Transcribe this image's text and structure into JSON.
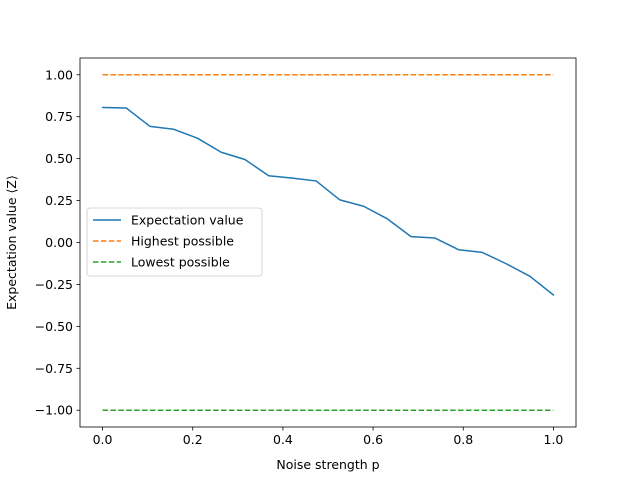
{
  "chart_data": {
    "type": "line",
    "xlabel": "Noise strength p",
    "ylabel": "Expectation value ⟨Z⟩",
    "xlim": [
      -0.05,
      1.05
    ],
    "ylim": [
      -1.1,
      1.1
    ],
    "xticks": [
      0.0,
      0.2,
      0.4,
      0.6,
      0.8,
      1.0
    ],
    "xtick_labels": [
      "0.0",
      "0.2",
      "0.4",
      "0.6",
      "0.8",
      "1.0"
    ],
    "yticks": [
      -1.0,
      -0.75,
      -0.5,
      -0.25,
      0.0,
      0.25,
      0.5,
      0.75,
      1.0
    ],
    "ytick_labels": [
      "−1.00",
      "−0.75",
      "−0.50",
      "−0.25",
      "0.00",
      "0.25",
      "0.50",
      "0.75",
      "1.00"
    ],
    "grid": false,
    "legend_position": "center-left",
    "series": [
      {
        "name": "Expectation value",
        "color": "#1f77b4",
        "style": "solid",
        "x": [
          0.0,
          0.0526,
          0.1053,
          0.1579,
          0.2105,
          0.2632,
          0.3158,
          0.3684,
          0.4211,
          0.4737,
          0.5263,
          0.5789,
          0.6316,
          0.6842,
          0.7368,
          0.7895,
          0.8421,
          0.8947,
          0.9474,
          1.0
        ],
        "y": [
          0.805,
          0.802,
          0.692,
          0.675,
          0.622,
          0.538,
          0.495,
          0.398,
          0.384,
          0.367,
          0.254,
          0.216,
          0.141,
          0.035,
          0.027,
          -0.043,
          -0.059,
          -0.126,
          -0.201,
          -0.313
        ]
      },
      {
        "name": "Highest possible",
        "color": "#ff7f0e",
        "style": "dashed",
        "x": [
          0.0,
          1.0
        ],
        "y": [
          1.0,
          1.0
        ]
      },
      {
        "name": "Lowest possible",
        "color": "#2ca02c",
        "style": "dashed",
        "x": [
          0.0,
          1.0
        ],
        "y": [
          -1.0,
          -1.0
        ]
      }
    ]
  }
}
